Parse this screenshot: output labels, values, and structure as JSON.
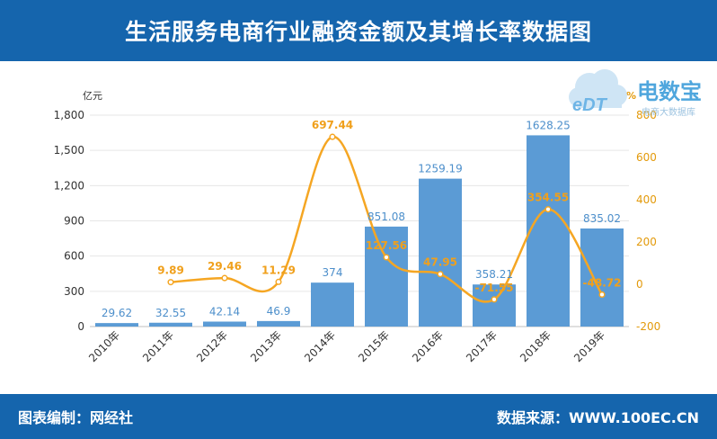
{
  "header": {
    "title": "生活服务电商行业融资金额及其增长率数据图"
  },
  "footer": {
    "left": "图表编制：网经社",
    "right": "数据来源：WWW.100EC.CN"
  },
  "logo": {
    "text": "电数宝",
    "sub": "电商大数据库",
    "badge": "eDT",
    "icon": "cloud-logo-icon"
  },
  "colors": {
    "header": "#1565ad",
    "bar": "#5b9bd5",
    "line": "#f5a623",
    "bar_label": "#4d8fcb",
    "line_label": "#f0a01c"
  },
  "chart_data": {
    "type": "bar+line",
    "categories": [
      "2010年",
      "2011年",
      "2012年",
      "2013年",
      "2014年",
      "2015年",
      "2016年",
      "2017年",
      "2018年",
      "2019年"
    ],
    "series": [
      {
        "type": "bar",
        "axis": "left",
        "values": [
          29.62,
          32.55,
          42.14,
          46.9,
          374,
          851.08,
          1259.19,
          358.21,
          1628.25,
          835.02
        ],
        "labels": [
          "29.62",
          "32.55",
          "42.14",
          "46.9",
          "374",
          "851.08",
          "1259.19",
          "358.21",
          "1628.25",
          "835.02"
        ]
      },
      {
        "type": "line",
        "axis": "right",
        "smooth": true,
        "values": [
          null,
          9.89,
          29.46,
          11.29,
          697.44,
          127.56,
          47.95,
          -71.55,
          354.55,
          -48.72
        ],
        "labels": [
          null,
          "9.89",
          "29.46",
          "11.29",
          "697.44",
          "127.56",
          "47.95",
          "-71.55",
          "354.55",
          "-48.72"
        ]
      }
    ],
    "y_left": {
      "unit": "亿元",
      "lim": [
        0,
        1800
      ],
      "ticks": [
        "0",
        "300",
        "600",
        "900",
        "1,200",
        "1,500",
        "1,800"
      ]
    },
    "y_right": {
      "unit": "%",
      "lim": [
        -200,
        800
      ],
      "ticks": [
        "-200",
        "0",
        "200",
        "400",
        "600",
        "800"
      ]
    },
    "grid": true
  }
}
